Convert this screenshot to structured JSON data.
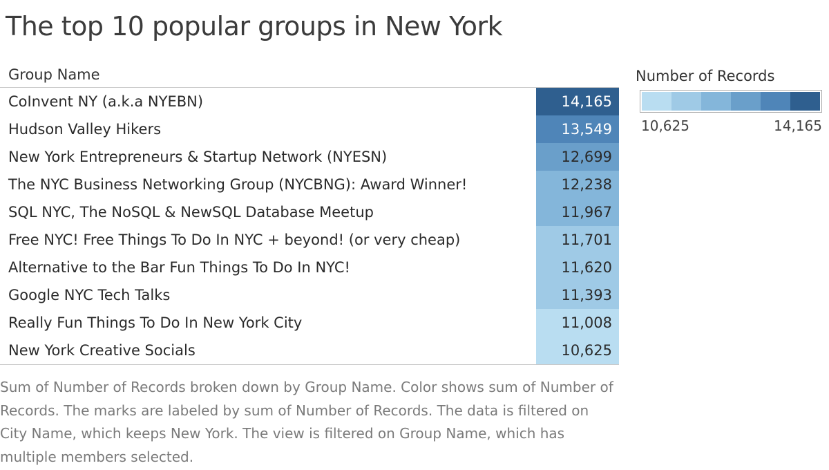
{
  "chart_data": {
    "type": "table",
    "title": "The top 10 popular groups in New York",
    "column_header": "Group Name",
    "measure": "Number of Records",
    "categories": [
      "CoInvent NY (a.k.a NYEBN)",
      "Hudson Valley Hikers",
      "New York Entrepreneurs & Startup Network (NYESN)",
      "The NYC Business Networking Group (NYCBNG): Award Winner!",
      "SQL NYC, The NoSQL & NewSQL Database Meetup",
      "Free NYC! Free Things To Do In NYC + beyond! (or very cheap)",
      "Alternative to the Bar Fun Things To Do In NYC!",
      "Google NYC Tech Talks",
      "Really Fun Things To Do In New York City",
      "New York Creative Socials"
    ],
    "values": [
      14165,
      13549,
      12699,
      12238,
      11967,
      11701,
      11620,
      11393,
      11008,
      10625
    ],
    "value_labels": [
      "14,165",
      "13,549",
      "12,699",
      "12,238",
      "11,967",
      "11,701",
      "11,620",
      "11,393",
      "11,008",
      "10,625"
    ],
    "color_scale": {
      "title": "Number of Records",
      "min": 10625,
      "max": 14165,
      "min_label": "10,625",
      "max_label": "14,165",
      "steps": [
        "#b9ddf1",
        "#9fcae6",
        "#84b6da",
        "#6a9fca",
        "#4f85b8",
        "#2f5f8f"
      ]
    },
    "caption": "Sum of Number of Records broken down by Group Name.  Color shows sum of Number of Records.  The marks are labeled by sum of Number of Records. The data is filtered on City Name, which keeps New York. The view is filtered on Group Name, which has multiple members selected."
  }
}
